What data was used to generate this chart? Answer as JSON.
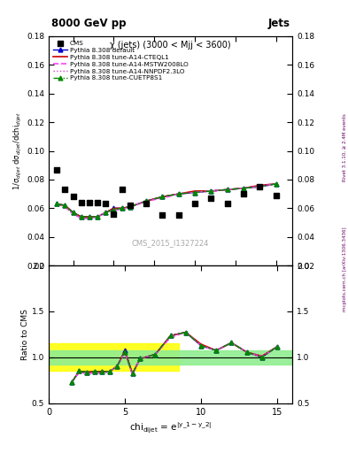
{
  "title_left": "8000 GeV pp",
  "title_right": "Jets",
  "plot_title": "χ (jets) (3000 < Mjj < 3600)",
  "watermark": "CMS_2015_I1327224",
  "right_label_top": "Rivet 3.1.10, ≥ 2.4M events",
  "right_label_bottom": "mcplots.cern.ch [arXiv:1306.3436]",
  "ylabel_main": "1/σ$_{dijet}$ dσ$_{dijet}$/dchi$_{dijet}$",
  "ylabel_ratio": "Ratio to CMS",
  "ylim_main": [
    0.02,
    0.18
  ],
  "ylim_ratio": [
    0.5,
    2.0
  ],
  "xlim": [
    1,
    16
  ],
  "yticks_main": [
    0.02,
    0.04,
    0.06,
    0.08,
    0.1,
    0.12,
    0.14,
    0.16,
    0.18
  ],
  "yticks_ratio": [
    0.5,
    1.0,
    1.5,
    2.0
  ],
  "xticks": [
    0,
    5,
    10,
    15
  ],
  "cms_x": [
    1.5,
    2.0,
    2.5,
    3.0,
    3.5,
    4.0,
    4.5,
    5.0,
    5.5,
    6.0,
    7.0,
    8.0,
    9.0,
    10.0,
    11.0,
    12.0,
    13.0,
    14.0,
    15.0
  ],
  "cms_y": [
    0.087,
    0.073,
    0.068,
    0.064,
    0.064,
    0.064,
    0.063,
    0.056,
    0.073,
    0.062,
    0.063,
    0.055,
    0.055,
    0.063,
    0.067,
    0.063,
    0.07,
    0.075,
    0.069
  ],
  "default_x": [
    1.5,
    2.0,
    2.5,
    3.0,
    3.5,
    4.0,
    4.5,
    5.0,
    5.5,
    6.0,
    7.0,
    8.0,
    9.0,
    10.0,
    11.0,
    12.0,
    13.0,
    14.0,
    15.0
  ],
  "default_y": [
    0.063,
    0.062,
    0.057,
    0.054,
    0.054,
    0.054,
    0.057,
    0.06,
    0.06,
    0.061,
    0.065,
    0.068,
    0.07,
    0.071,
    0.072,
    0.073,
    0.074,
    0.075,
    0.077
  ],
  "cteql1_x": [
    1.5,
    2.0,
    2.5,
    3.0,
    3.5,
    4.0,
    4.5,
    5.0,
    5.5,
    6.0,
    7.0,
    8.0,
    9.0,
    10.0,
    11.0,
    12.0,
    13.0,
    14.0,
    15.0
  ],
  "cteql1_y": [
    0.063,
    0.062,
    0.057,
    0.054,
    0.054,
    0.054,
    0.057,
    0.06,
    0.06,
    0.061,
    0.065,
    0.068,
    0.07,
    0.072,
    0.072,
    0.073,
    0.074,
    0.076,
    0.077
  ],
  "mstw_x": [
    1.5,
    2.0,
    2.5,
    3.0,
    3.5,
    4.0,
    4.5,
    5.0,
    5.5,
    6.0,
    7.0,
    8.0,
    9.0,
    10.0,
    11.0,
    12.0,
    13.0,
    14.0,
    15.0
  ],
  "mstw_y": [
    0.063,
    0.061,
    0.056,
    0.053,
    0.053,
    0.054,
    0.057,
    0.059,
    0.059,
    0.061,
    0.065,
    0.067,
    0.07,
    0.071,
    0.072,
    0.073,
    0.074,
    0.075,
    0.077
  ],
  "nnpdf_x": [
    1.5,
    2.0,
    2.5,
    3.0,
    3.5,
    4.0,
    4.5,
    5.0,
    5.5,
    6.0,
    7.0,
    8.0,
    9.0,
    10.0,
    11.0,
    12.0,
    13.0,
    14.0,
    15.0
  ],
  "nnpdf_y": [
    0.063,
    0.061,
    0.056,
    0.053,
    0.053,
    0.054,
    0.057,
    0.059,
    0.06,
    0.061,
    0.065,
    0.068,
    0.07,
    0.071,
    0.072,
    0.073,
    0.074,
    0.076,
    0.077
  ],
  "cuetp_x": [
    1.5,
    2.0,
    2.5,
    3.0,
    3.5,
    4.0,
    4.5,
    5.0,
    5.5,
    6.0,
    7.0,
    8.0,
    9.0,
    10.0,
    11.0,
    12.0,
    13.0,
    14.0,
    15.0
  ],
  "cuetp_y": [
    0.063,
    0.062,
    0.057,
    0.054,
    0.054,
    0.054,
    0.057,
    0.059,
    0.06,
    0.061,
    0.065,
    0.068,
    0.07,
    0.071,
    0.072,
    0.073,
    0.074,
    0.075,
    0.077
  ],
  "ratio_x": [
    1.5,
    2.0,
    2.5,
    3.0,
    3.5,
    4.0,
    4.5,
    5.0,
    5.5,
    6.0,
    7.0,
    8.0,
    9.0,
    10.0,
    11.0,
    12.0,
    13.0,
    14.0,
    15.0
  ],
  "ratio_default": [
    0.724,
    0.849,
    0.838,
    0.844,
    0.844,
    0.844,
    0.905,
    1.071,
    0.822,
    0.984,
    1.032,
    1.236,
    1.273,
    1.127,
    1.075,
    1.159,
    1.057,
    1.0,
    1.116
  ],
  "ratio_cteql1": [
    0.724,
    0.849,
    0.838,
    0.844,
    0.844,
    0.844,
    0.905,
    1.071,
    0.822,
    0.984,
    1.032,
    1.236,
    1.273,
    1.143,
    1.075,
    1.159,
    1.057,
    1.013,
    1.116
  ],
  "ratio_mstw": [
    0.724,
    0.836,
    0.824,
    0.828,
    0.828,
    0.844,
    0.905,
    1.054,
    0.808,
    0.984,
    1.032,
    1.218,
    1.273,
    1.127,
    1.075,
    1.159,
    1.057,
    1.0,
    1.116
  ],
  "ratio_nnpdf": [
    0.724,
    0.836,
    0.824,
    0.828,
    0.828,
    0.844,
    0.905,
    1.054,
    0.822,
    0.984,
    1.032,
    1.236,
    1.273,
    1.127,
    1.075,
    1.159,
    1.057,
    1.013,
    1.116
  ],
  "ratio_cuetp": [
    0.724,
    0.849,
    0.838,
    0.844,
    0.844,
    0.844,
    0.905,
    1.054,
    0.822,
    0.984,
    1.032,
    1.236,
    1.273,
    1.127,
    1.075,
    1.159,
    1.057,
    1.0,
    1.116
  ],
  "green_band_xmin": 1.0,
  "green_band_xmax": 16.0,
  "green_band_lo": 0.92,
  "green_band_hi": 1.08,
  "yellow_band_xmin": 1.0,
  "yellow_band_xmax": 9.0,
  "yellow_band_lo": 0.85,
  "yellow_band_hi": 1.15,
  "colors": {
    "cms": "#000000",
    "default": "#0000cc",
    "cteql1": "#cc0000",
    "mstw": "#ff44ff",
    "nnpdf": "#cc44cc",
    "cuetp": "#008800"
  },
  "background_color": "#ffffff"
}
